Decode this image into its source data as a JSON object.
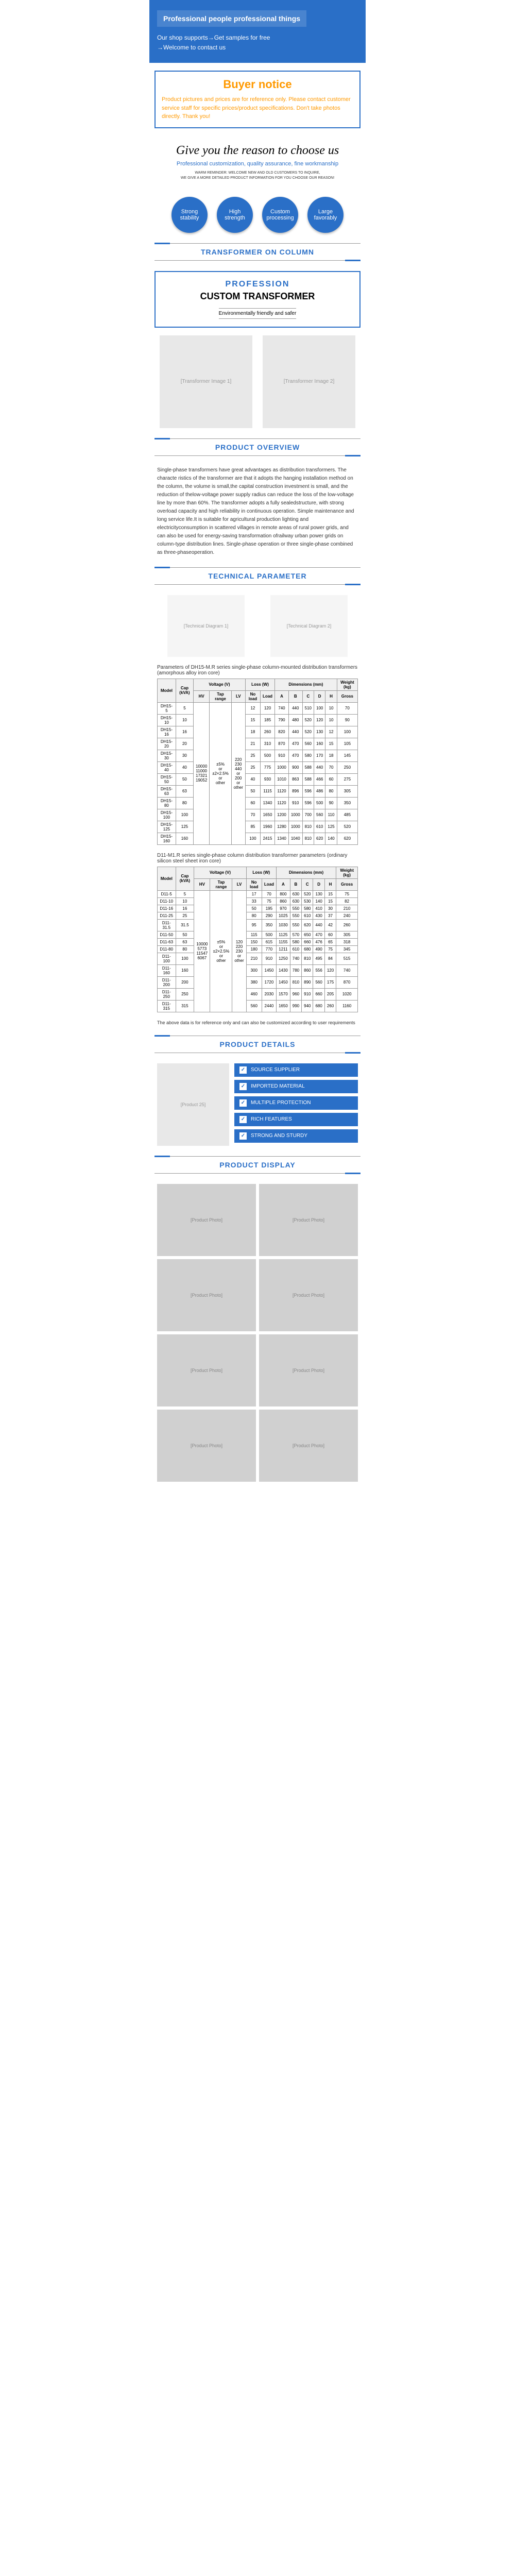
{
  "hero": {
    "title": "Professional people professional things",
    "line1": "Our shop supports→Get samples for free",
    "line2": "→Welcome to contact us"
  },
  "notice": {
    "title": "Buyer notice",
    "text": "Product pictures and prices are for reference only. Please contact customer service staff for specific prices/product specifications. Don't take photos directly. Thank you!"
  },
  "reason": {
    "title": "Give you the reason to choose us",
    "subtitle": "Professional customization, quality assurance, fine workmanship",
    "small1": "WARM REMINDER: WELCOME NEW AND OLD CUSTOMERS TO INQUIRE,",
    "small2": "WE GIVE A MORE DETAILED PRODUCT INFORMATION FOR YOU CHOOSE OUR REASON!"
  },
  "circles": [
    {
      "l1": "Strong",
      "l2": "stability"
    },
    {
      "l1": "High",
      "l2": "strength"
    },
    {
      "l1": "Custom",
      "l2": "processing"
    },
    {
      "l1": "Large",
      "l2": "favorably"
    }
  ],
  "sections": {
    "col": "TRANSFORMER ON COLUMN",
    "overview": "PRODUCT OVERVIEW",
    "tech": "TECHNICAL PARAMETER",
    "details": "PRODUCT DETAILS",
    "display": "PRODUCT DISPLAY"
  },
  "profession": {
    "label": "PROFESSION",
    "main": "CUSTOM TRANSFORMER",
    "sub": "Environmentally friendly and safer"
  },
  "overview_text": "Single-phase transformers have great advantages as distribution transformers. The characte ristics of the transformer are that it adopts the hanging installation method on the column, the volume is small,the capital construction investment is small, and the reduction of thelow-voltage power supply radius can reduce the loss of the low-voltage line by more than 60%. The transformer adopts a fully sealedstructure, with strong overload capacity and high reliability in continuous operation. Simple maintenance and long service life.It is suitable for agricultural production lighting and electricityconsumption in scattered villages in remote areas of rural power grids, and can also be used for energy-saving transformation ofrailway urban power grids on column-type distribution lines. Single-phase operation or three single-phase combined as three-phaseoperation.",
  "table1_caption": "Parameters of DH15-M.R series single-phase column-mounted distribution transformers (amorphous alloy iron core)",
  "table1": {
    "headers": [
      "Model",
      "Cap (kVA)",
      "HV",
      "Tap range",
      "LV",
      "No load",
      "Load",
      "A",
      "B",
      "C",
      "D",
      "H",
      "Gross"
    ],
    "lossHeader": "Loss (W)",
    "dimHeader": "Dimensions (mm)",
    "weightHeader": "Weight (kg)",
    "hv_values": [
      "10000",
      "11000",
      "17321",
      "19052"
    ],
    "tap_values": [
      "±5%",
      "or",
      "±2×2.5%",
      "or",
      "other"
    ],
    "lv_values": [
      "220",
      "230",
      "440",
      "or",
      "200",
      "or",
      "other"
    ],
    "rows": [
      [
        "DH15-5",
        "5",
        "12",
        "120",
        "740",
        "440",
        "510",
        "100",
        "10",
        "70"
      ],
      [
        "DH15-10",
        "10",
        "15",
        "185",
        "790",
        "480",
        "520",
        "120",
        "10",
        "90"
      ],
      [
        "DH15-16",
        "16",
        "18",
        "260",
        "820",
        "440",
        "520",
        "130",
        "12",
        "100"
      ],
      [
        "DH15-20",
        "20",
        "21",
        "310",
        "870",
        "470",
        "560",
        "160",
        "15",
        "105"
      ],
      [
        "DH15-30",
        "30",
        "25",
        "500",
        "910",
        "470",
        "580",
        "170",
        "18",
        "145"
      ],
      [
        "DH15-40",
        "40",
        "25",
        "775",
        "1000",
        "900",
        "588",
        "440",
        "70",
        "250"
      ],
      [
        "DH15-50",
        "50",
        "40",
        "930",
        "1010",
        "863",
        "588",
        "466",
        "60",
        "275"
      ],
      [
        "DH15-63",
        "63",
        "50",
        "1115",
        "1120",
        "896",
        "596",
        "486",
        "80",
        "305"
      ],
      [
        "DH15-80",
        "80",
        "60",
        "1340",
        "1120",
        "910",
        "596",
        "500",
        "90",
        "350"
      ],
      [
        "DH15-100",
        "100",
        "70",
        "1650",
        "1200",
        "1000",
        "700",
        "560",
        "110",
        "485"
      ],
      [
        "DH15-125",
        "125",
        "85",
        "1960",
        "1280",
        "1000",
        "810",
        "610",
        "125",
        "520"
      ],
      [
        "DH15-160",
        "160",
        "100",
        "2415",
        "1340",
        "1040",
        "810",
        "620",
        "140",
        "620"
      ]
    ]
  },
  "table2_caption": "D11-M1.R series single-phase column distribution transformer parameters (ordinary silicon steel sheet iron core)",
  "table2": {
    "headers": [
      "Model",
      "Cap (kVA)",
      "HV",
      "Tap range",
      "LV",
      "No load",
      "Load",
      "A",
      "B",
      "C",
      "D",
      "H",
      "Gross"
    ],
    "hv_values": [
      "10000",
      "5773",
      "11547",
      "6067"
    ],
    "tap_values": [
      "±5%",
      "or",
      "±2×2.5%",
      "or",
      "other"
    ],
    "lv_values": [
      "120",
      "220",
      "230",
      "or",
      "other"
    ],
    "rows": [
      [
        "D11-5",
        "5",
        "17",
        "70",
        "800",
        "630",
        "520",
        "130",
        "15",
        "75"
      ],
      [
        "D11-10",
        "10",
        "33",
        "75",
        "860",
        "630",
        "530",
        "140",
        "15",
        "82"
      ],
      [
        "D11-16",
        "16",
        "50",
        "195",
        "970",
        "550",
        "580",
        "410",
        "30",
        "210"
      ],
      [
        "D11-25",
        "25",
        "80",
        "290",
        "1025",
        "550",
        "610",
        "430",
        "37",
        "240"
      ],
      [
        "D11-31.5",
        "31.5",
        "95",
        "350",
        "1030",
        "550",
        "620",
        "440",
        "42",
        "260"
      ],
      [
        "D11-50",
        "50",
        "115",
        "500",
        "1125",
        "570",
        "650",
        "470",
        "60",
        "305"
      ],
      [
        "D11-63",
        "63",
        "150",
        "615",
        "1155",
        "580",
        "660",
        "476",
        "65",
        "318"
      ],
      [
        "D11-80",
        "80",
        "180",
        "770",
        "1211",
        "610",
        "680",
        "490",
        "75",
        "345"
      ],
      [
        "D11-100",
        "100",
        "210",
        "910",
        "1250",
        "740",
        "810",
        "495",
        "84",
        "515"
      ],
      [
        "D11-160",
        "160",
        "300",
        "1450",
        "1430",
        "780",
        "860",
        "556",
        "120",
        "740"
      ],
      [
        "D11-200",
        "200",
        "380",
        "1720",
        "1450",
        "810",
        "890",
        "560",
        "175",
        "870"
      ],
      [
        "D11-250",
        "250",
        "460",
        "2030",
        "1570",
        "960",
        "910",
        "660",
        "205",
        "1020"
      ],
      [
        "D11-315",
        "315",
        "560",
        "2440",
        "1650",
        "990",
        "940",
        "680",
        "260",
        "1160"
      ]
    ]
  },
  "table_note": "The above data is for reference only and can also be customized according to user requirements",
  "details": [
    "SOURCE SUPPLIER",
    "IMPORTED MATERIAL",
    "MULTIPLE PROTECTION",
    "RICH FEATURES",
    "STRONG AND STURDY"
  ],
  "placeholders": {
    "transformer1": "[Transformer Image 1]",
    "transformer2": "[Transformer Image 2]",
    "diagram1": "[Technical Diagram 1]",
    "diagram2": "[Technical Diagram 2]",
    "detail_img": "[Product 25]",
    "display": "[Product Photo]"
  },
  "colors": {
    "primary": "#2a6fc7",
    "accent": "#ff9900",
    "text": "#333333",
    "border": "#999999"
  }
}
